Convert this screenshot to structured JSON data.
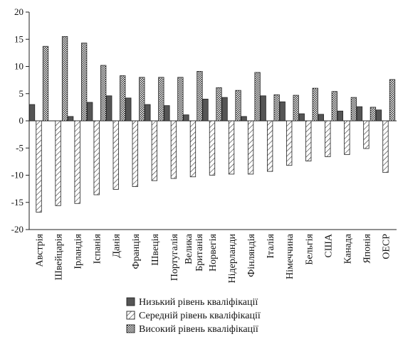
{
  "chart_data": {
    "type": "bar",
    "title": "",
    "xlabel": "",
    "ylabel": "",
    "ylim": [
      -20,
      20
    ],
    "yticks": [
      20,
      15,
      10,
      5,
      0,
      -5,
      -10,
      -15,
      -20
    ],
    "grid": false,
    "legend_position": "bottom",
    "categories": [
      "Австрія",
      "Швейцарія",
      "Ірландія",
      "Іспанія",
      "Данія",
      "Франція",
      "Швеція",
      "Португалія",
      "Велика Британія",
      "Норвегія",
      "Нідерланди",
      "Фінляндія",
      "Італія",
      "Німеччина",
      "Бельгія",
      "США",
      "Канада",
      "Японія",
      "ОЕСР"
    ],
    "series": [
      {
        "name": "Низький рівень кваліфікації",
        "fill": "solid",
        "color": "#555555",
        "values": [
          3.0,
          0,
          0.8,
          3.4,
          4.6,
          4.2,
          3.0,
          2.8,
          1.1,
          4.0,
          4.3,
          0.8,
          4.6,
          3.5,
          1.3,
          1.2,
          1.8,
          2.6,
          2.0
        ]
      },
      {
        "name": "Середній рівень кваліфікації",
        "fill": "diagonal",
        "color": "#222222",
        "values": [
          -16.8,
          -15.6,
          -15.2,
          -13.6,
          -12.6,
          -12.1,
          -11.0,
          -10.6,
          -10.3,
          -10.0,
          -9.8,
          -9.8,
          -9.3,
          -8.2,
          -7.4,
          -6.6,
          -6.2,
          -5.1,
          -9.5
        ]
      },
      {
        "name": "Високий рівень кваліфікації",
        "fill": "crosshatch",
        "color": "#222222",
        "values": [
          13.7,
          15.5,
          14.3,
          10.2,
          8.3,
          8.0,
          8.0,
          8.0,
          9.1,
          6.1,
          5.6,
          8.9,
          4.8,
          4.7,
          6.0,
          5.4,
          4.3,
          2.5,
          7.6
        ]
      }
    ]
  }
}
